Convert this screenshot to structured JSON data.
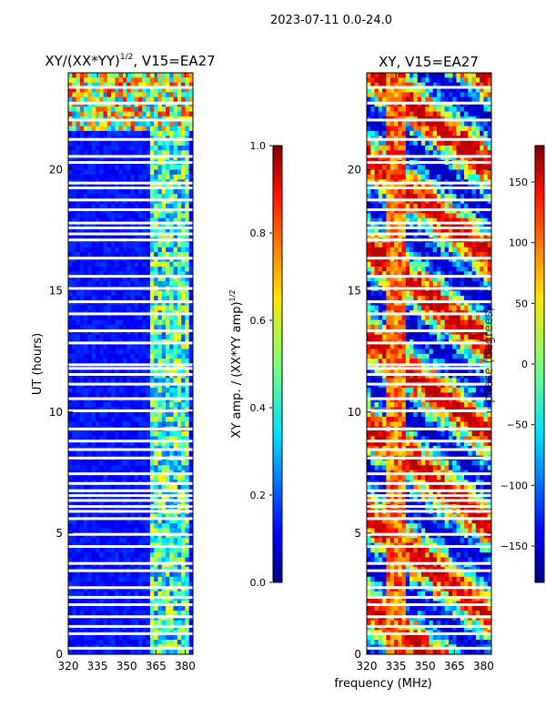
{
  "suptitle": "2023-07-11 0.0-24.0",
  "shared_xlabel": "frequency (MHz)",
  "chart_data": [
    {
      "type": "heatmap",
      "title": "XY/(XX*YY)",
      "title_superscript": "1/2",
      "title_suffix": ", V15=EA27",
      "xlabel": "",
      "ylabel": "UT (hours)",
      "xlim": [
        320,
        384
      ],
      "ylim": [
        0,
        24
      ],
      "x_ticks": [
        320,
        335,
        350,
        365,
        380
      ],
      "y_ticks": [
        0,
        5,
        10,
        15,
        20
      ],
      "colorbar": {
        "label": "XY amp. / (XX*YY amp)",
        "label_superscript": "1/2",
        "range": [
          0.0,
          1.0
        ],
        "ticks": [
          "0.0",
          "0.2",
          "0.4",
          "0.6",
          "0.8",
          "1.0"
        ],
        "colormap": "jet"
      },
      "blank_rows_ut": [
        0.25,
        0.85,
        1.15,
        1.55,
        2.05,
        2.35,
        2.75,
        3.45,
        3.75,
        4.45,
        4.95,
        5.6,
        5.9,
        6.1,
        6.35,
        6.55,
        6.75,
        7.05,
        7.45,
        8.1,
        8.45,
        8.8,
        9.3,
        10.05,
        10.55,
        11.15,
        11.55,
        11.8,
        11.95,
        12.85,
        13.35,
        14.05,
        14.55,
        15.1,
        15.6,
        16.35,
        17.1,
        17.35,
        17.6,
        17.8,
        18.35,
        18.75,
        19.25,
        19.45,
        20.3,
        20.55,
        21.25,
        22.05,
        22.75,
        23.4
      ],
      "features": [
        {
          "note": "hot channels near 365-381 MHz",
          "band_mhz": [
            361,
            382
          ]
        },
        {
          "note": "high-amplitude patch",
          "ut_range": [
            21.5,
            24
          ],
          "level": 0.85
        }
      ]
    },
    {
      "type": "heatmap",
      "title": "XY, V15=EA27",
      "xlabel": "",
      "ylabel": "",
      "xlim": [
        320,
        384
      ],
      "ylim": [
        0,
        24
      ],
      "x_ticks": [
        320,
        335,
        350,
        365,
        380
      ],
      "y_ticks": [
        0,
        5,
        10,
        15,
        20
      ],
      "colorbar": {
        "label": "phase (degrees)",
        "range": [
          -180,
          180
        ],
        "ticks": [
          "−150",
          "−100",
          "−50",
          "0",
          "50",
          "100",
          "150"
        ],
        "tick_values": [
          -150,
          -100,
          -50,
          0,
          50,
          100,
          150
        ],
        "colormap": "jet"
      },
      "blank_rows_ut": [
        0.25,
        0.85,
        1.15,
        1.55,
        2.05,
        2.35,
        2.75,
        3.45,
        3.75,
        4.45,
        4.95,
        5.6,
        5.9,
        6.1,
        6.35,
        6.55,
        6.75,
        7.05,
        7.45,
        8.1,
        8.45,
        8.8,
        9.3,
        10.05,
        10.55,
        11.15,
        11.55,
        11.8,
        11.95,
        12.85,
        13.35,
        14.05,
        14.55,
        15.1,
        15.6,
        16.35,
        17.1,
        17.35,
        17.6,
        17.8,
        18.35,
        18.75,
        19.25,
        19.45,
        20.3,
        20.55,
        21.25,
        22.05,
        22.75,
        23.4
      ]
    }
  ]
}
